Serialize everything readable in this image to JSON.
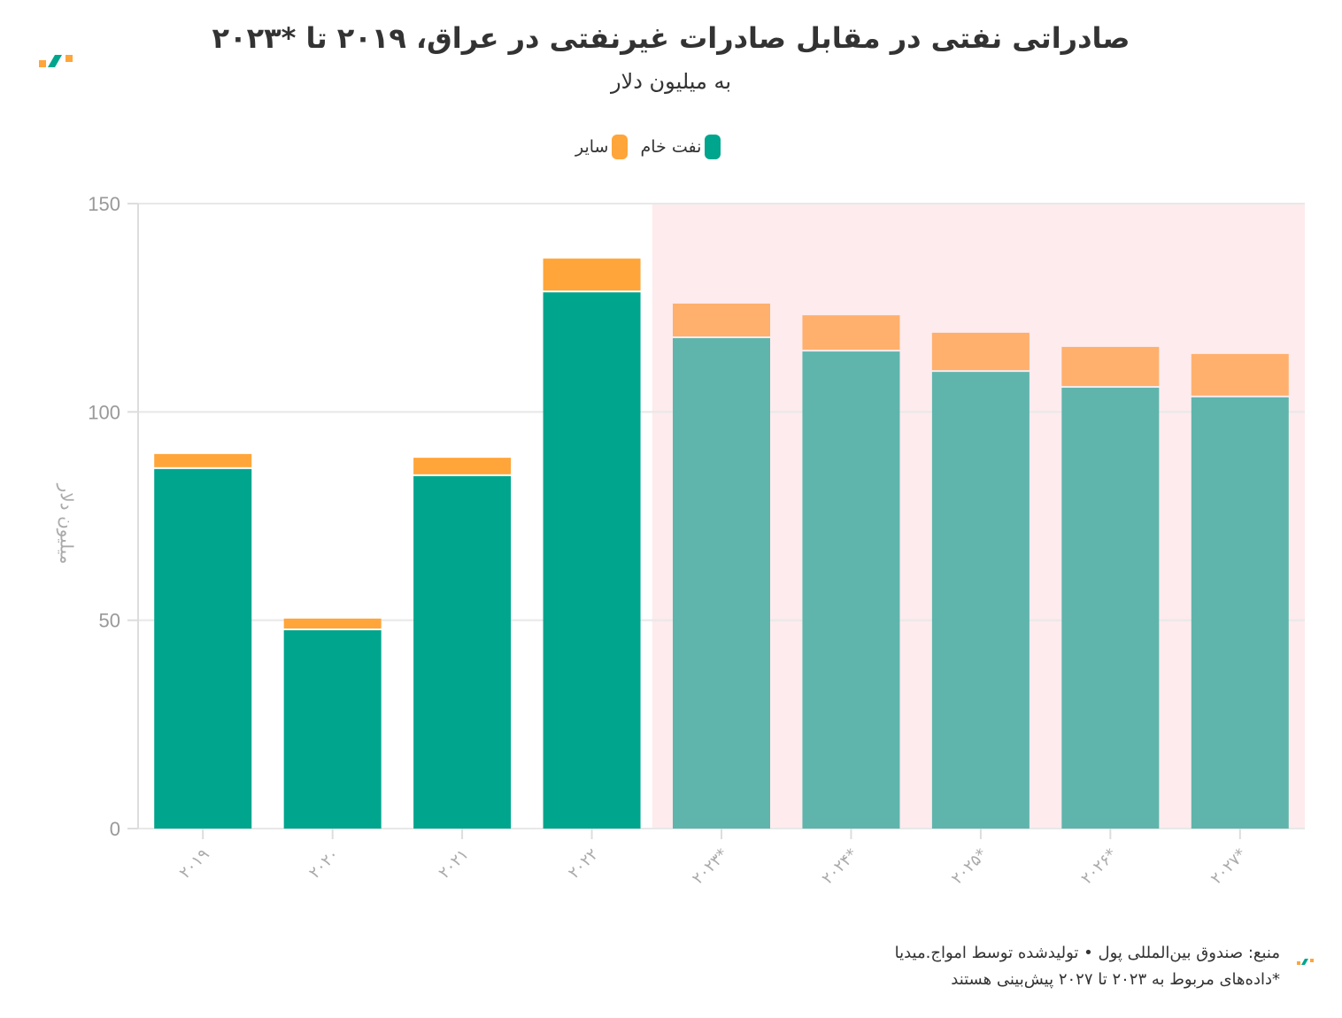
{
  "title": "صادراتی نفتی در مقابل صادرات غیرنفتی در عراق، ۲۰۱۹ تا *۲۰۲۳",
  "subtitle": "به میلیون دلار",
  "footer": {
    "source": "منبع: صندوق بین‌المللی پول • تولیدشده توسط امواج.میدیا",
    "note": "*داده‌های مربوط به ۲۰۲۳ تا ۲۰۲۷ پیش‌بینی هستند"
  },
  "colors": {
    "crude": "#00a58e",
    "other": "#ffa53a",
    "crude_forecast": "#5fb5ac",
    "other_forecast": "#ffb06d",
    "forecast_bg": "#fdebed"
  },
  "chart_data": {
    "type": "bar",
    "stacked": true,
    "title": "صادراتی نفتی در مقابل صادرات غیرنفتی در عراق، ۲۰۱۹ تا *۲۰۲۳",
    "subtitle": "به میلیون دلار",
    "ylabel": "میلیون دلار",
    "xlabel": "",
    "ylim": [
      0,
      150
    ],
    "yticks": [
      "0",
      "50",
      "100",
      "150"
    ],
    "grid": true,
    "legend_position": "top",
    "categories": [
      "۲۰۱۹",
      "۲۰۲۰",
      "۲۰۲۱",
      "۲۰۲۲",
      "۲۰۲۳*",
      "۲۰۲۴*",
      "۲۰۲۵*",
      "۲۰۲۶*",
      "۲۰۲۷*"
    ],
    "forecast_from_index": 4,
    "series": [
      {
        "name": "نفت خام",
        "values": [
          86.3,
          47.6,
          84.6,
          128.7,
          117.7,
          114.5,
          109.6,
          105.8,
          103.5
        ]
      },
      {
        "name": "سایر",
        "values": [
          3.6,
          2.8,
          4.4,
          8.1,
          8.3,
          8.7,
          9.4,
          9.8,
          10.4
        ]
      }
    ]
  }
}
